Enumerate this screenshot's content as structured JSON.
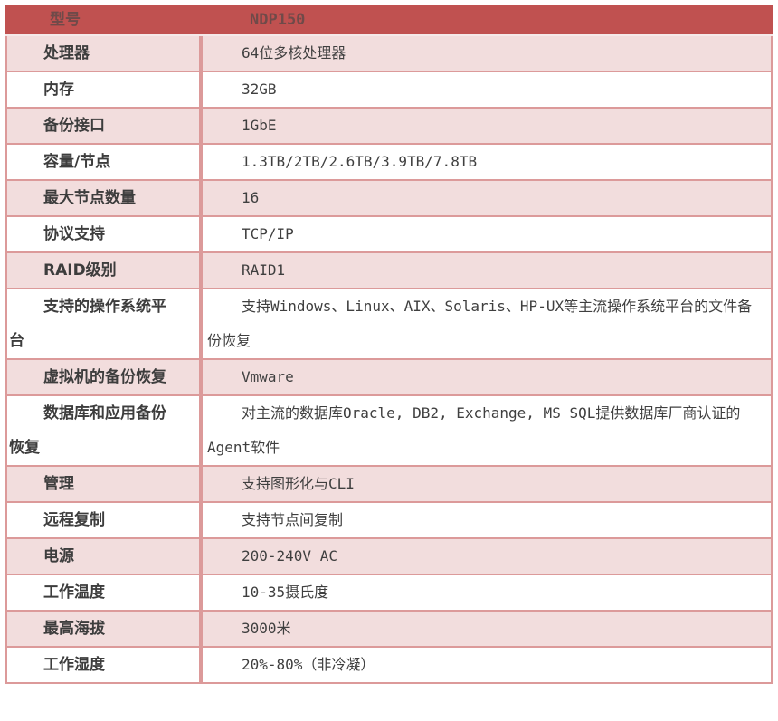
{
  "theme": {
    "header_bg": "#c05150",
    "header_text": "#6f4a49",
    "row_pink": "#f2dddd",
    "row_white": "#ffffff",
    "border": "#dc9a9a",
    "label_text": "#3d3d3d",
    "value_text": "#3f3f3f"
  },
  "table": {
    "header": {
      "label": "型号",
      "value": "NDP150"
    },
    "rows": [
      {
        "label": "处理器",
        "value": "64位多核处理器"
      },
      {
        "label": "内存",
        "value": "32GB"
      },
      {
        "label": "备份接口",
        "value": "1GbE"
      },
      {
        "label": "容量/节点",
        "value": "1.3TB/2TB/2.6TB/3.9TB/7.8TB"
      },
      {
        "label": "最大节点数量",
        "value": "16"
      },
      {
        "label": "协议支持",
        "value": "TCP/IP"
      },
      {
        "label": "RAID级别",
        "value": "RAID1"
      },
      {
        "label": "支持的操作系统平台",
        "value": "支持Windows、Linux、AIX、Solaris、HP-UX等主流操作系统平台的文件备份恢复"
      },
      {
        "label": "虚拟机的备份恢复",
        "value": "Vmware"
      },
      {
        "label": "数据库和应用备份恢复",
        "value": "对主流的数据库Oracle, DB2, Exchange, MS SQL提供数据库厂商认证的Agent软件"
      },
      {
        "label": "管理",
        "value": "支持图形化与CLI"
      },
      {
        "label": "远程复制",
        "value": "支持节点间复制"
      },
      {
        "label": "电源",
        "value": "200-240V AC"
      },
      {
        "label": "工作温度",
        "value": "10-35摄氏度"
      },
      {
        "label": "最高海拔",
        "value": "3000米"
      },
      {
        "label": "工作湿度",
        "value": "20%-80%（非冷凝）"
      }
    ]
  }
}
